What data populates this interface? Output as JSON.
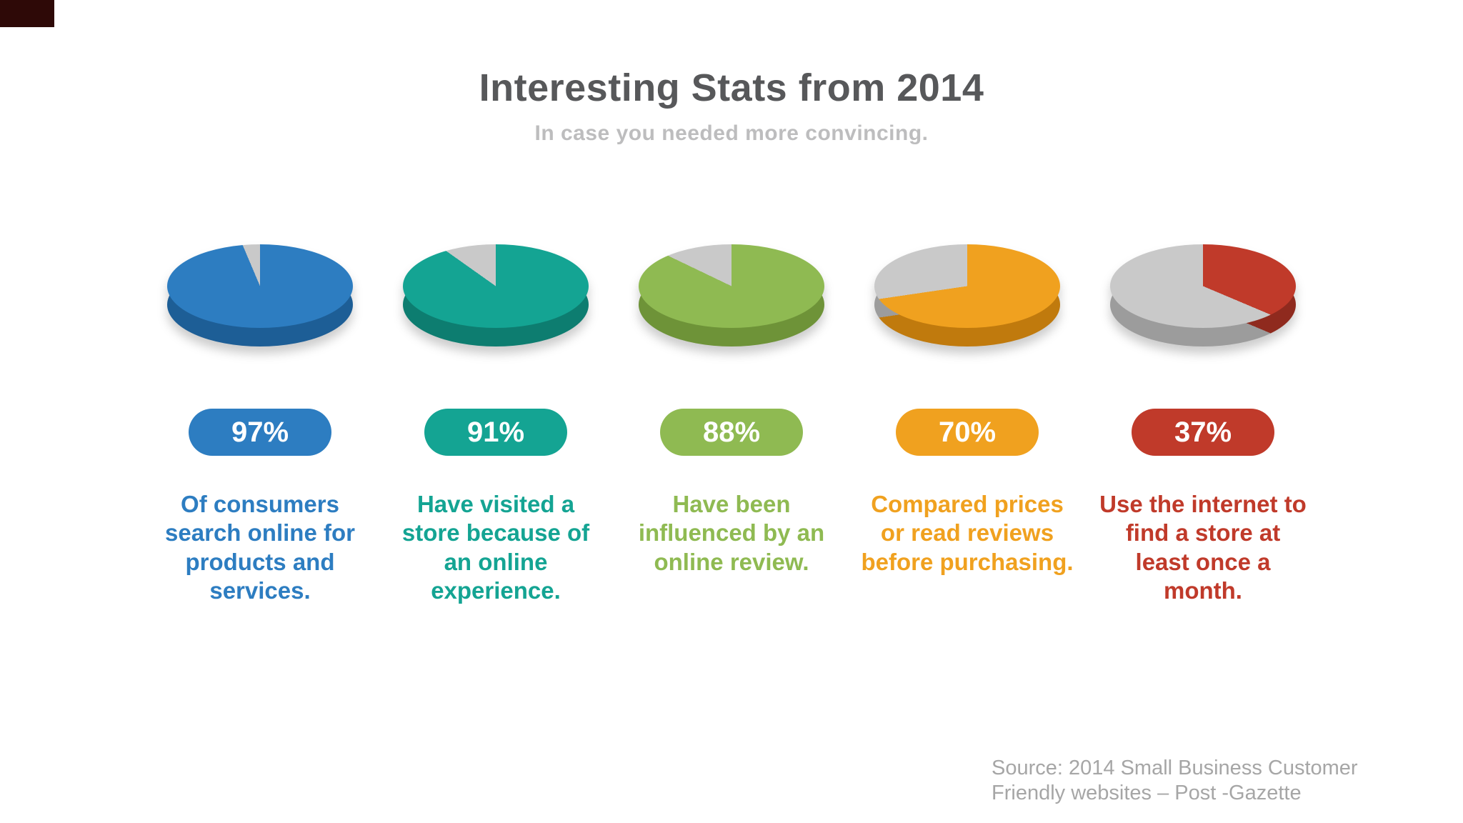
{
  "page": {
    "title": "Interesting Stats from 2014",
    "subtitle": "In case you needed more convincing.",
    "source_line1": "Source: 2014 Small Business Customer",
    "source_line2": "Friendly websites – Post -Gazette"
  },
  "colors": {
    "title_text": "#57585a",
    "subtitle_text": "#bdbdbe",
    "source_text": "#a6a6a6",
    "remainder_gray": "#c9c9c9",
    "corner_artifact": "#2e0907"
  },
  "chart_data": [
    {
      "type": "pie",
      "percent_label": "97%",
      "value": 97,
      "remainder": 3,
      "color": "#2d7dc1",
      "color_dark": "#1d5e96",
      "remainder_color": "#c9c9c9",
      "remainder_dark": "#9c9c9c",
      "description": "Of consumers search online for products and services.",
      "slices": [
        {
          "label": "stat",
          "value": 97
        },
        {
          "label": "remainder",
          "value": 3
        }
      ]
    },
    {
      "type": "pie",
      "percent_label": "91%",
      "value": 91,
      "remainder": 9,
      "color": "#14a493",
      "color_dark": "#0d7d70",
      "remainder_color": "#c9c9c9",
      "remainder_dark": "#9c9c9c",
      "description": "Have visited a store because of an online experience.",
      "slices": [
        {
          "label": "stat",
          "value": 91
        },
        {
          "label": "remainder",
          "value": 9
        }
      ]
    },
    {
      "type": "pie",
      "percent_label": "88%",
      "value": 88,
      "remainder": 12,
      "color": "#8fba52",
      "color_dark": "#6e9338",
      "remainder_color": "#c9c9c9",
      "remainder_dark": "#9c9c9c",
      "description": "Have been influenced by an online review.",
      "slices": [
        {
          "label": "stat",
          "value": 88
        },
        {
          "label": "remainder",
          "value": 12
        }
      ]
    },
    {
      "type": "pie",
      "percent_label": "70%",
      "value": 70,
      "remainder": 30,
      "color": "#f0a11f",
      "color_dark": "#c07a0d",
      "remainder_color": "#c9c9c9",
      "remainder_dark": "#9c9c9c",
      "description": "Compared prices or read reviews before purchasing.",
      "slices": [
        {
          "label": "stat",
          "value": 70
        },
        {
          "label": "remainder",
          "value": 30
        }
      ]
    },
    {
      "type": "pie",
      "percent_label": "37%",
      "value": 37,
      "remainder": 63,
      "color": "#c03a2a",
      "color_dark": "#8f2a1e",
      "remainder_color": "#c9c9c9",
      "remainder_dark": "#9c9c9c",
      "description": "Use the internet to find a store at least once a month.",
      "slices": [
        {
          "label": "stat",
          "value": 37
        },
        {
          "label": "remainder",
          "value": 63
        }
      ]
    }
  ]
}
